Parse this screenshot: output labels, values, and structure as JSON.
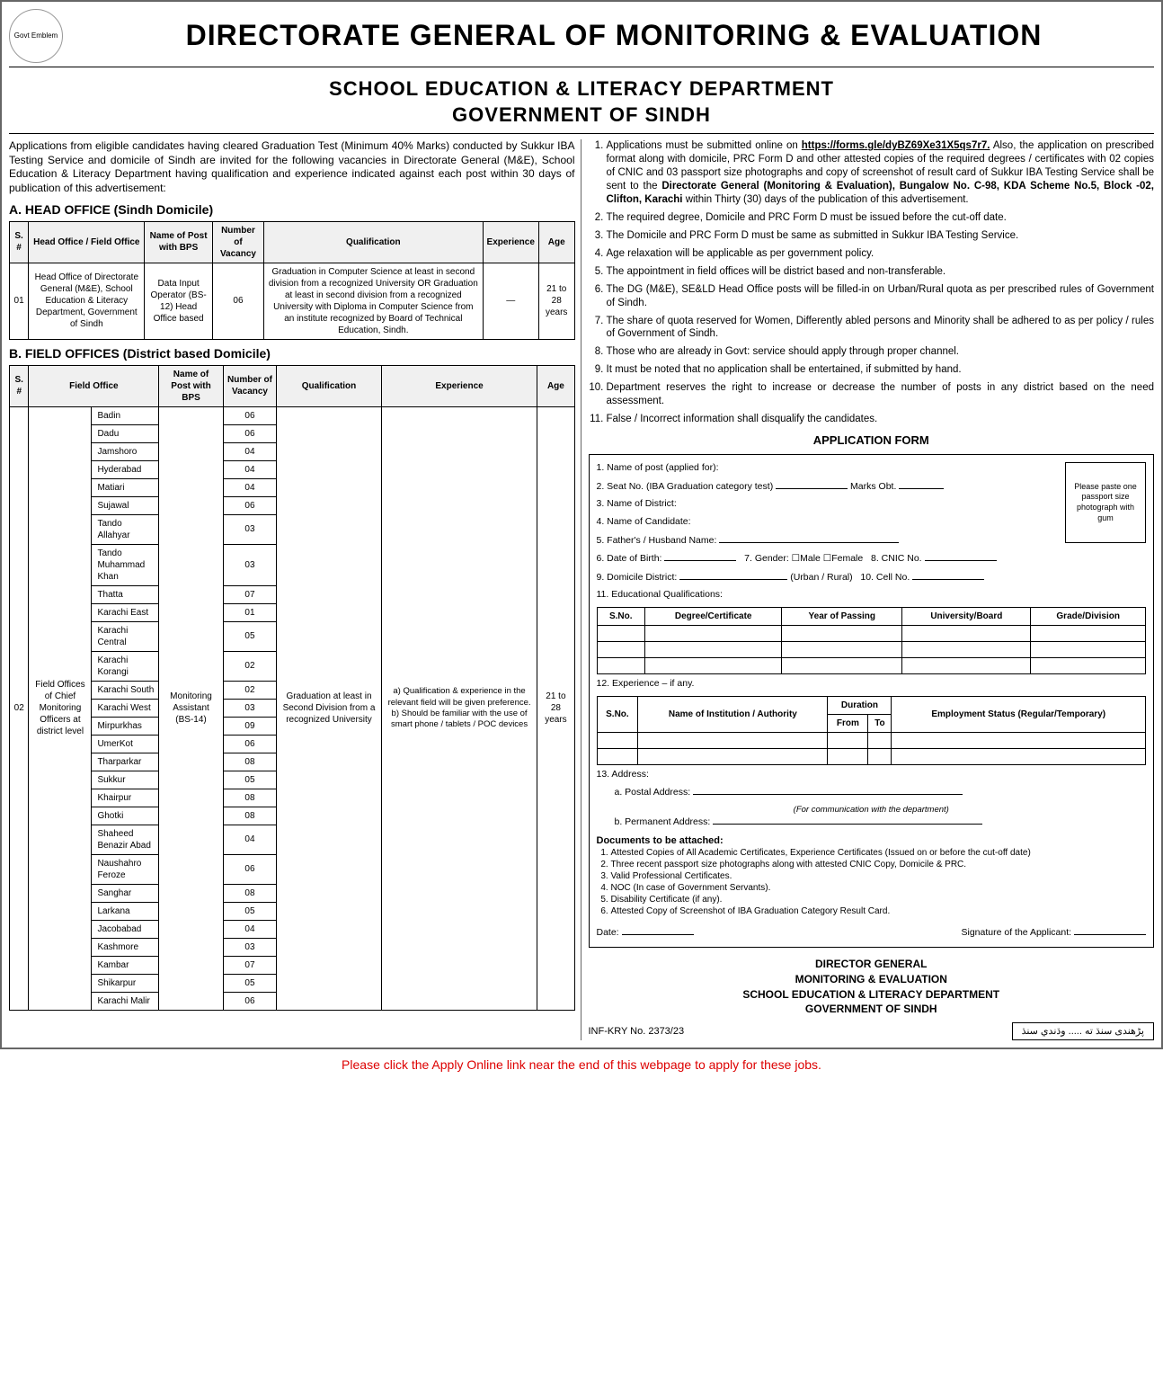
{
  "header": {
    "main_title": "DIRECTORATE GENERAL OF MONITORING & EVALUATION",
    "sub_line1": "SCHOOL EDUCATION & LITERACY DEPARTMENT",
    "sub_line2": "GOVERNMENT OF SINDH",
    "emblem_alt": "Govt Emblem"
  },
  "intro": "Applications from eligible candidates having cleared Graduation Test (Minimum 40% Marks) conducted by Sukkur IBA Testing Service and domicile of Sindh are invited for the following vacancies in Directorate General (M&E), School Education & Literacy Department having qualification and experience indicated against each post within 30 days of publication of this advertisement:",
  "sectionA": {
    "title": "A. HEAD OFFICE (Sindh Domicile)",
    "columns": [
      "S. #",
      "Head Office / Field Office",
      "Name of Post with BPS",
      "Number of Vacancy",
      "Qualification",
      "Experience",
      "Age"
    ],
    "row": {
      "sno": "01",
      "office": "Head Office of Directorate General (M&E), School Education & Literacy Department, Government of Sindh",
      "post": "Data Input Operator (BS-12) Head Office based",
      "vacancy": "06",
      "qualification": "Graduation in Computer Science at least in second division from a recognized University OR Graduation at least in second division from a recognized University with Diploma in Computer Science from an institute recognized by Board of Technical Education, Sindh.",
      "experience": "—",
      "age": "21 to 28 years"
    }
  },
  "sectionB": {
    "title": "B. FIELD OFFICES (District based Domicile)",
    "columns": [
      "S. #",
      "Field Office",
      "",
      "Name of Post with BPS",
      "Number of Vacancy",
      "Qualification",
      "Experience",
      "Age"
    ],
    "sno": "02",
    "office_desc": "Field Offices of Chief Monitoring Officers at district level",
    "post": "Monitoring Assistant (BS-14)",
    "qualification": "Graduation at least in Second Division from a recognized University",
    "experience": "a) Qualification & experience in the relevant field will be given preference.  b) Should be familiar with the use of smart phone / tablets / POC devices",
    "age": "21 to 28 years",
    "districts": [
      {
        "name": "Badin",
        "vac": "06"
      },
      {
        "name": "Dadu",
        "vac": "06"
      },
      {
        "name": "Jamshoro",
        "vac": "04"
      },
      {
        "name": "Hyderabad",
        "vac": "04"
      },
      {
        "name": "Matiari",
        "vac": "04"
      },
      {
        "name": "Sujawal",
        "vac": "06"
      },
      {
        "name": "Tando Allahyar",
        "vac": "03"
      },
      {
        "name": "Tando Muhammad Khan",
        "vac": "03"
      },
      {
        "name": "Thatta",
        "vac": "07"
      },
      {
        "name": "Karachi East",
        "vac": "01"
      },
      {
        "name": "Karachi Central",
        "vac": "05"
      },
      {
        "name": "Karachi Korangi",
        "vac": "02"
      },
      {
        "name": "Karachi South",
        "vac": "02"
      },
      {
        "name": "Karachi West",
        "vac": "03"
      },
      {
        "name": "Mirpurkhas",
        "vac": "09"
      },
      {
        "name": "UmerKot",
        "vac": "06"
      },
      {
        "name": "Tharparkar",
        "vac": "08"
      },
      {
        "name": "Sukkur",
        "vac": "05"
      },
      {
        "name": "Khairpur",
        "vac": "08"
      },
      {
        "name": "Ghotki",
        "vac": "08"
      },
      {
        "name": "Shaheed Benazir Abad",
        "vac": "04"
      },
      {
        "name": "Naushahro Feroze",
        "vac": "06"
      },
      {
        "name": "Sanghar",
        "vac": "08"
      },
      {
        "name": "Larkana",
        "vac": "05"
      },
      {
        "name": "Jacobabad",
        "vac": "04"
      },
      {
        "name": "Kashmore",
        "vac": "03"
      },
      {
        "name": "Kambar",
        "vac": "07"
      },
      {
        "name": "Shikarpur",
        "vac": "05"
      },
      {
        "name": "Karachi Malir",
        "vac": "06"
      }
    ]
  },
  "instructions": {
    "item1_pre": "Applications must be submitted online on ",
    "item1_link": "https://forms.gle/dyBZ69Xe31X5qs7r7.",
    "item1_post": " Also, the application on prescribed format along with domicile, PRC Form D and other attested copies of the required degrees / certificates with 02 copies of CNIC and 03 passport size photographs and copy of screenshot of result card of Sukkur IBA Testing Service shall be sent to the ",
    "item1_bold": "Directorate General (Monitoring & Evaluation), Bungalow No. C-98, KDA Scheme No.5, Block -02, Clifton, Karachi",
    "item1_tail": " within Thirty (30) days of the publication of this advertisement.",
    "items": [
      "The required degree, Domicile and PRC Form D must be issued before the cut-off date.",
      "The Domicile and PRC Form D must be same as submitted in Sukkur IBA Testing Service.",
      "Age relaxation will be applicable as per government policy.",
      "The appointment in field offices will be district based and non-transferable.",
      "The DG (M&E), SE&LD Head Office posts will be filled-in on Urban/Rural quota as per prescribed rules of Government of Sindh.",
      "The share of quota reserved for Women, Differently abled persons and Minority shall be adhered to as per policy / rules of Government of Sindh.",
      "Those who are already in Govt: service should apply through proper channel.",
      "It must be noted that no application shall be entertained, if submitted by hand.",
      "Department reserves the right to increase or decrease the number of posts in any district based on the need assessment.",
      "False / Incorrect information shall disqualify the candidates."
    ]
  },
  "app_form": {
    "title": "APPLICATION FORM",
    "photo": "Please paste one passport size photograph with gum",
    "f1": "1. Name of post (applied for):",
    "f2a": "2. Seat No. (IBA Graduation category test)",
    "f2b": "Marks Obt.",
    "f3": "3. Name of District:",
    "f4": "4. Name of Candidate:",
    "f5": "5. Father's / Husband Name:",
    "f6": "6. Date of Birth:",
    "f7": "7. Gender:",
    "f7m": "Male",
    "f7f": "Female",
    "f8": "8. CNIC No.",
    "f9": "9. Domicile District:",
    "f9b": "(Urban / Rural)",
    "f10": "10. Cell No.",
    "f11": "11. Educational Qualifications:",
    "edu_cols": [
      "S.No.",
      "Degree/Certificate",
      "Year of Passing",
      "University/Board",
      "Grade/Division"
    ],
    "f12": "12. Experience – if any.",
    "exp_cols": [
      "S.No.",
      "Name of Institution / Authority",
      "From",
      "To",
      "Employment Status (Regular/Temporary)"
    ],
    "exp_dur": "Duration",
    "f13": "13. Address:",
    "f13a": "a. Postal Address:",
    "f13a_note": "(For communication with the department)",
    "f13b": "b. Permanent Address:",
    "docs_title": "Documents to be attached:",
    "docs": [
      "Attested Copies of All Academic Certificates, Experience Certificates (Issued on or before the cut-off date)",
      "Three recent passport size photographs along with attested CNIC Copy, Domicile & PRC.",
      "Valid Professional Certificates.",
      "NOC (In case of Government Servants).",
      "Disability Certificate (if any).",
      "Attested Copy of Screenshot of IBA Graduation Category Result Card."
    ],
    "date": "Date:",
    "sig": "Signature of the Applicant:"
  },
  "director": {
    "l1": "DIRECTOR GENERAL",
    "l2": "MONITORING & EVALUATION",
    "l3": "SCHOOL EDUCATION & LITERACY DEPARTMENT",
    "l4": "GOVERNMENT OF SINDH"
  },
  "footer": {
    "inf": "INF-KRY No. 2373/23",
    "urdu": "پڑھندی سنڌ ته ..... وڌندي سنڌ"
  },
  "apply_note": "Please click the Apply Online link near the end of this webpage to apply for these jobs."
}
